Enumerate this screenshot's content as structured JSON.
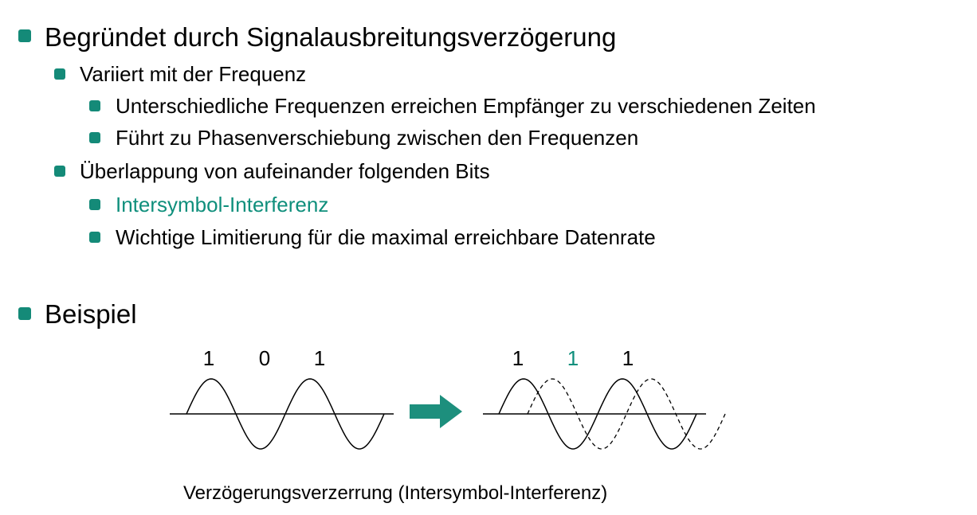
{
  "colors": {
    "accent": "#0f8f7c",
    "bullet": "#148a78",
    "arrow": "#1d8f7d",
    "text": "#000000"
  },
  "bullets": {
    "l1_a": "Begründet durch Signalausbreitungsverzögerung",
    "l2_a": "Variiert mit der Frequenz",
    "l3_a": "Unterschiedliche Frequenzen erreichen Empfänger zu verschiedenen Zeiten",
    "l3_b": "Führt zu Phasenverschiebung zwischen den Frequenzen",
    "l2_b": "Überlappung von aufeinander folgenden Bits",
    "l3_c": "Intersymbol-Interferenz",
    "l3_d": "Wichtige Limitierung für die maximal erreichbare Datenrate",
    "l1_b": "Beispiel"
  },
  "diagram": {
    "left_bits": [
      "1",
      "0",
      "1"
    ],
    "right_bits": [
      "1",
      "1",
      "1"
    ],
    "arrow_icon": "right-arrow-icon",
    "caption": "Verzögerungsverzerrung (Intersymbol-Interferenz)"
  }
}
